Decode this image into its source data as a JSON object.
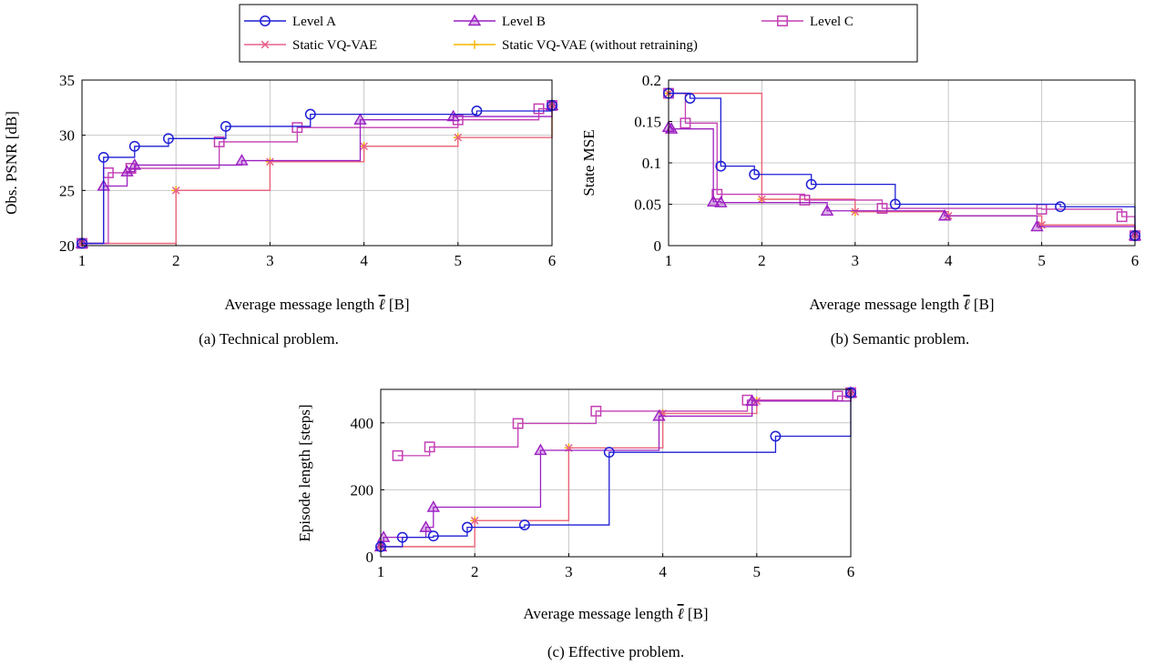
{
  "legend": {
    "placement": "top-center",
    "entries": [
      {
        "key": "A",
        "label": "Level A",
        "color": "#1f1fd6",
        "marker": "circle"
      },
      {
        "key": "B",
        "label": "Level B",
        "color": "#9b1fc2",
        "marker": "triangle"
      },
      {
        "key": "C",
        "label": "Level C",
        "color": "#c43fb4",
        "marker": "square"
      },
      {
        "key": "S",
        "label": "Static VQ-VAE",
        "color": "#e8608a",
        "marker": "x"
      },
      {
        "key": "R",
        "label": "Static VQ-VAE (without retraining)",
        "color": "#f5b700",
        "marker": "plus"
      }
    ]
  },
  "chart_data": [
    {
      "type": "line",
      "id": "a",
      "caption": "(a) Technical problem.",
      "xlabel": "Average message length",
      "xlabel_unit": "[B]",
      "ylabel": "Obs. PSNR [dB]",
      "xlim": [
        1,
        6
      ],
      "ylim": [
        20,
        35
      ],
      "xticks": [
        "1",
        "2",
        "3",
        "4",
        "5",
        "6"
      ],
      "yticks": [
        "20",
        "25",
        "30",
        "35"
      ],
      "grid": true,
      "series": [
        {
          "key": "A",
          "x": [
            1.0,
            1.23,
            1.56,
            1.92,
            2.53,
            3.43,
            5.2,
            6.0
          ],
          "y": [
            20.2,
            28.0,
            29.0,
            29.7,
            30.8,
            31.9,
            32.2,
            32.7
          ]
        },
        {
          "key": "B",
          "x": [
            1.0,
            1.23,
            1.48,
            1.56,
            2.7,
            3.96,
            4.95,
            6.0
          ],
          "y": [
            20.2,
            25.4,
            26.7,
            27.3,
            27.7,
            31.4,
            31.7,
            32.7
          ]
        },
        {
          "key": "C",
          "x": [
            1.0,
            1.28,
            1.52,
            2.46,
            3.29,
            5.0,
            5.86,
            6.0
          ],
          "y": [
            20.2,
            26.6,
            27.0,
            29.4,
            30.7,
            31.4,
            32.4,
            32.7
          ]
        },
        {
          "key": "S",
          "x": [
            1.0,
            2.0,
            3.0,
            4.0,
            5.0,
            6.0
          ],
          "y": [
            20.2,
            25.0,
            27.6,
            29.0,
            29.8,
            32.7
          ]
        },
        {
          "key": "R",
          "x": [
            1.0,
            2.0,
            3.0,
            4.0,
            5.0,
            6.0
          ],
          "y": [
            20.2,
            25.0,
            27.6,
            29.0,
            29.8,
            32.7
          ]
        }
      ]
    },
    {
      "type": "line",
      "id": "b",
      "caption": "(b) Semantic problem.",
      "xlabel": "Average message length",
      "xlabel_unit": "[B]",
      "ylabel": "State MSE",
      "xlim": [
        1,
        6
      ],
      "ylim": [
        0,
        0.2
      ],
      "xticks": [
        "1",
        "2",
        "3",
        "4",
        "5",
        "6"
      ],
      "yticks": [
        "0",
        "0.05",
        "0.1",
        "0.15",
        "0.2"
      ],
      "grid": true,
      "series": [
        {
          "key": "A",
          "x": [
            1.0,
            1.23,
            1.56,
            1.92,
            2.53,
            3.43,
            5.2,
            6.0
          ],
          "y": [
            0.184,
            0.178,
            0.096,
            0.086,
            0.074,
            0.05,
            0.047,
            0.012
          ]
        },
        {
          "key": "B",
          "x": [
            1.0,
            1.03,
            1.48,
            1.56,
            2.7,
            3.96,
            4.95,
            6.0
          ],
          "y": [
            0.143,
            0.141,
            0.053,
            0.052,
            0.042,
            0.036,
            0.023,
            0.012
          ]
        },
        {
          "key": "C",
          "x": [
            1.0,
            1.18,
            1.52,
            2.46,
            3.29,
            5.0,
            5.86,
            6.0
          ],
          "y": [
            0.184,
            0.148,
            0.062,
            0.055,
            0.045,
            0.044,
            0.035,
            0.012
          ]
        },
        {
          "key": "S",
          "x": [
            1.0,
            2.0,
            3.0,
            4.0,
            5.0,
            6.0
          ],
          "y": [
            0.184,
            0.056,
            0.041,
            0.036,
            0.025,
            0.012
          ]
        },
        {
          "key": "R",
          "x": [
            1.0,
            2.0,
            3.0,
            4.0,
            5.0,
            6.0
          ],
          "y": [
            0.184,
            0.056,
            0.041,
            0.036,
            0.025,
            0.012
          ]
        }
      ]
    },
    {
      "type": "line",
      "id": "c",
      "caption": "(c) Effective problem.",
      "xlabel": "Average message length",
      "xlabel_unit": "[B]",
      "ylabel": "Episode length [steps]",
      "xlim": [
        1,
        6
      ],
      "ylim": [
        0,
        500
      ],
      "xticks": [
        "1",
        "2",
        "3",
        "4",
        "5",
        "6"
      ],
      "yticks": [
        "0",
        "200",
        "400"
      ],
      "grid": true,
      "series": [
        {
          "key": "A",
          "x": [
            1.0,
            1.23,
            1.56,
            1.92,
            2.53,
            3.43,
            5.2,
            6.0
          ],
          "y": [
            30,
            58,
            62,
            88,
            95,
            312,
            360,
            490
          ]
        },
        {
          "key": "B",
          "x": [
            1.0,
            1.03,
            1.48,
            1.56,
            2.7,
            3.96,
            4.95,
            6.0
          ],
          "y": [
            30,
            58,
            88,
            148,
            318,
            420,
            465,
            490
          ]
        },
        {
          "key": "C",
          "x": [
            1.18,
            1.52,
            2.46,
            3.29,
            4.9,
            5.86,
            6.0
          ],
          "y": [
            302,
            328,
            398,
            435,
            468,
            480,
            490
          ]
        },
        {
          "key": "S",
          "x": [
            1.0,
            2.0,
            3.0,
            4.0,
            5.0,
            6.0
          ],
          "y": [
            30,
            108,
            325,
            428,
            465,
            490
          ]
        },
        {
          "key": "R",
          "x": [
            1.0,
            2.0,
            3.0,
            4.0,
            5.0,
            6.0
          ],
          "y": [
            30,
            108,
            325,
            428,
            465,
            490
          ]
        }
      ]
    }
  ]
}
